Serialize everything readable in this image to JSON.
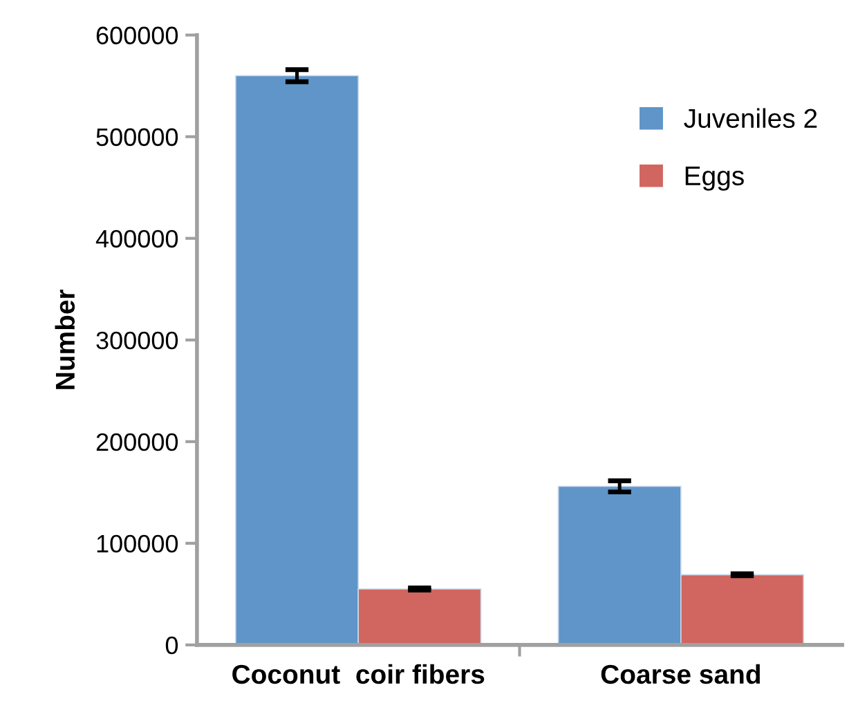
{
  "chart_data": {
    "type": "bar",
    "ylabel": "Number",
    "categories": [
      "Coconut  coir fibers",
      "Coarse sand"
    ],
    "series": [
      {
        "name": "Juveniles 2",
        "color": "#5f95c8",
        "values": [
          560000,
          156000
        ],
        "errors": [
          6000,
          5500
        ]
      },
      {
        "name": "Eggs",
        "color": "#d0665f",
        "values": [
          55000,
          69000
        ],
        "errors": [
          1000,
          1000
        ]
      }
    ],
    "ylim": [
      0,
      600000
    ],
    "yticks": [
      0,
      100000,
      200000,
      300000,
      400000,
      500000,
      600000
    ],
    "grid": false,
    "legend": "top right"
  }
}
